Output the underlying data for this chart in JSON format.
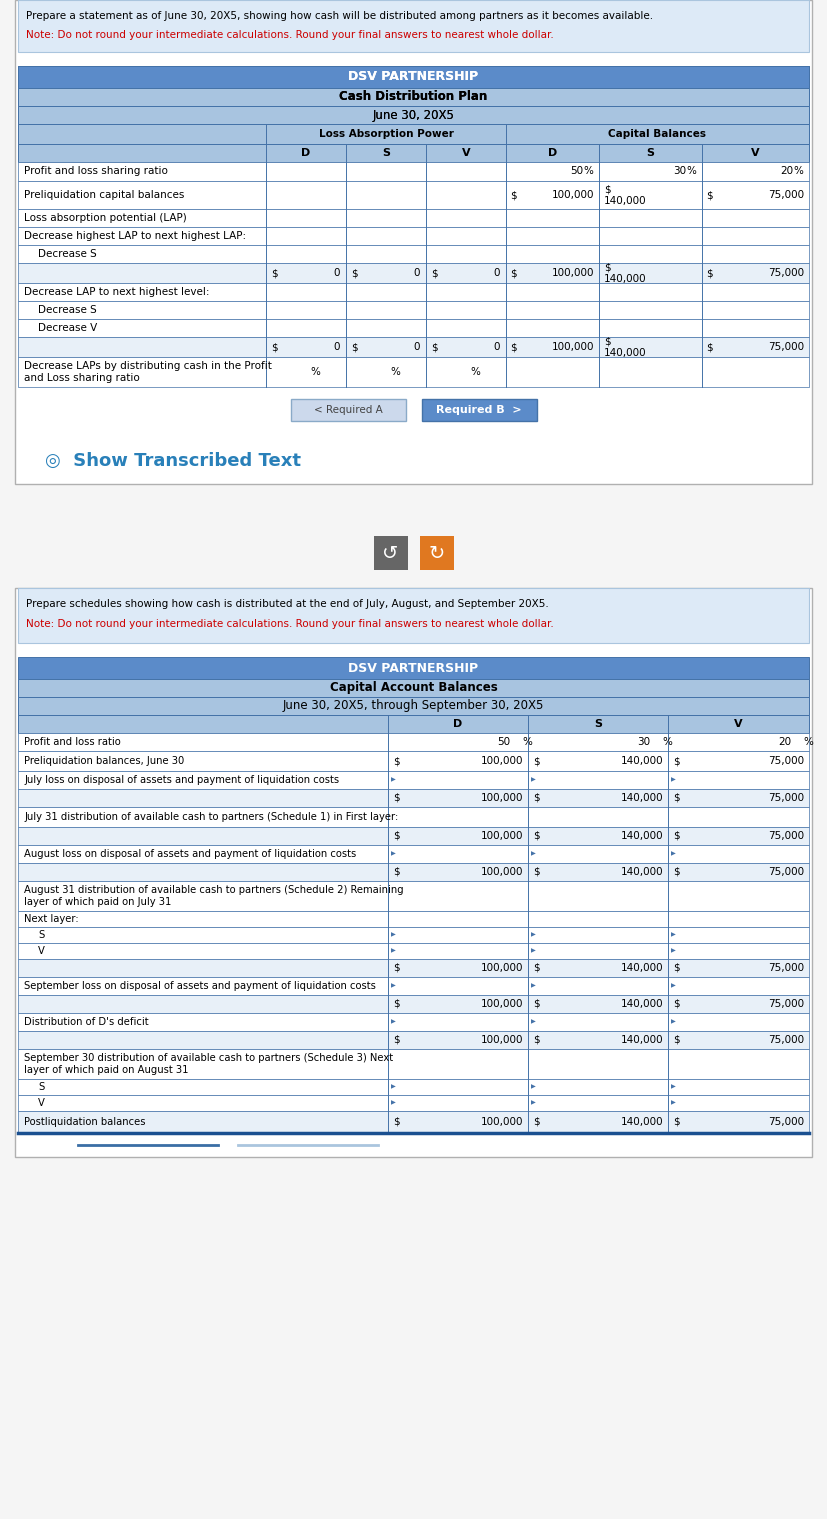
{
  "page_bg": "#f5f5f5",
  "inner_bg": "#ffffff",
  "note_bg": "#ddeaf7",
  "table_header_bg": "#5b8bc9",
  "table_subheader_bg": "#a8c4e0",
  "table_row_bg": "#ffffff",
  "table_alt_bg": "#e8f0f8",
  "border_color": "#4472a8",
  "note_red_color": "#cc0000",
  "outer_border": "#b0b0b0",
  "note1_line1": "Prepare a statement as of June 30, 20X5, showing how cash will be distributed among partners as it becomes available.",
  "note1_line2": "Note: Do not round your intermediate calculations. Round your final answers to nearest whole dollar.",
  "table1_title": "DSV PARTNERSHIP",
  "table1_subtitle": "Cash Distribution Plan",
  "table1_date": "June 30, 20X5",
  "table1_col_group1": "Loss Absorption Power",
  "table1_col_group2": "Capital Balances",
  "t1_rows": [
    {
      "label": "Profit and loss sharing ratio",
      "lap": [
        "",
        "",
        ""
      ],
      "cap": [
        "50 %",
        "30 %",
        "20 %"
      ],
      "subtotal": false,
      "indent": 0
    },
    {
      "label": "Preliquidation capital balances",
      "lap": [
        "",
        "",
        ""
      ],
      "cap": [
        "$ 100,000",
        "$\n140,000",
        "$ 75,000"
      ],
      "subtotal": false,
      "indent": 0
    },
    {
      "label": "Loss absorption potential (LAP)",
      "lap": [
        "",
        "",
        ""
      ],
      "cap": [
        "",
        "",
        ""
      ],
      "subtotal": false,
      "indent": 0
    },
    {
      "label": "Decrease highest LAP to next highest LAP:",
      "lap": [
        "",
        "",
        ""
      ],
      "cap": [
        "",
        "",
        ""
      ],
      "subtotal": false,
      "indent": 0
    },
    {
      "label": "Decrease S",
      "lap": [
        "",
        "",
        ""
      ],
      "cap": [
        "",
        "",
        ""
      ],
      "subtotal": false,
      "indent": 1
    },
    {
      "label": "",
      "lap": [
        "$ 0",
        "$ 0",
        "$ 0"
      ],
      "cap": [
        "$ 100,000",
        "$\n140,000",
        "$ 75,000"
      ],
      "subtotal": true,
      "indent": 0
    },
    {
      "label": "Decrease LAP to next highest level:",
      "lap": [
        "",
        "",
        ""
      ],
      "cap": [
        "",
        "",
        ""
      ],
      "subtotal": false,
      "indent": 0
    },
    {
      "label": "Decrease S",
      "lap": [
        "",
        "",
        ""
      ],
      "cap": [
        "",
        "",
        ""
      ],
      "subtotal": false,
      "indent": 1
    },
    {
      "label": "Decrease V",
      "lap": [
        "",
        "",
        ""
      ],
      "cap": [
        "",
        "",
        ""
      ],
      "subtotal": false,
      "indent": 1
    },
    {
      "label": "",
      "lap": [
        "$ 0",
        "$ 0",
        "$ 0"
      ],
      "cap": [
        "$ 100,000",
        "$\n140,000",
        "$ 75,000"
      ],
      "subtotal": true,
      "indent": 0
    },
    {
      "label": "Decrease LAPs by distributing cash in the Profit\nand Loss sharing ratio",
      "lap": [
        "%",
        "%",
        "%"
      ],
      "cap": [
        "",
        "",
        ""
      ],
      "subtotal": false,
      "indent": 0
    }
  ],
  "btn1_label": "< Required A",
  "btn2_label": "Required B  >",
  "show_transcribed_text": "Show Transcribed Text",
  "note2_line1": "Prepare schedules showing how cash is distributed at the end of July, August, and September 20X5.",
  "note2_line2": "Note: Do not round your intermediate calculations. Round your final answers to nearest whole dollar.",
  "table2_title": "DSV PARTNERSHIP",
  "table2_subtitle": "Capital Account Balances",
  "table2_date": "June 30, 20X5, through September 30, 20X5",
  "t2_rows": [
    {
      "label": "Profit and loss ratio",
      "d": "50 %",
      "s": "30 %",
      "v": "20 %",
      "sub": false,
      "indent": 0,
      "multiline": false
    },
    {
      "label": "Preliquidation balances, June 30",
      "d": "$ 100,000",
      "s": "$ 140,000",
      "v": "$ 75,000",
      "sub": false,
      "indent": 0,
      "multiline": false
    },
    {
      "label": "July loss on disposal of assets and payment of liquidation costs",
      "d": "",
      "s": "",
      "v": "",
      "sub": false,
      "indent": 0,
      "multiline": false
    },
    {
      "label": "",
      "d": "$ 100,000",
      "s": "$ 140,000",
      "v": "$ 75,000",
      "sub": true,
      "indent": 0,
      "multiline": false
    },
    {
      "label": "July 31 distribution of available cash to partners (Schedule 1) in First layer:",
      "d": "",
      "s": "",
      "v": "",
      "sub": false,
      "indent": 0,
      "multiline": false
    },
    {
      "label": "",
      "d": "$ 100,000",
      "s": "$ 140,000",
      "v": "$ 75,000",
      "sub": true,
      "indent": 0,
      "multiline": false
    },
    {
      "label": "August loss on disposal of assets and payment of liquidation costs",
      "d": "",
      "s": "",
      "v": "",
      "sub": false,
      "indent": 0,
      "multiline": false
    },
    {
      "label": "",
      "d": "$ 100,000",
      "s": "$ 140,000",
      "v": "$ 75,000",
      "sub": true,
      "indent": 0,
      "multiline": false
    },
    {
      "label": "August 31 distribution of available cash to partners (Schedule 2) Remaining\nlayer of which paid on July 31",
      "d": "",
      "s": "",
      "v": "",
      "sub": false,
      "indent": 0,
      "multiline": true
    },
    {
      "label": "Next layer:",
      "d": "",
      "s": "",
      "v": "",
      "sub": false,
      "indent": 0,
      "multiline": false
    },
    {
      "label": "S",
      "d": "",
      "s": "",
      "v": "",
      "sub": false,
      "indent": 1,
      "multiline": false
    },
    {
      "label": "V",
      "d": "",
      "s": "",
      "v": "",
      "sub": false,
      "indent": 1,
      "multiline": false
    },
    {
      "label": "",
      "d": "$ 100,000",
      "s": "$ 140,000",
      "v": "$ 75,000",
      "sub": true,
      "indent": 0,
      "multiline": false
    },
    {
      "label": "September loss on disposal of assets and payment of liquidation costs",
      "d": "",
      "s": "",
      "v": "",
      "sub": false,
      "indent": 0,
      "multiline": false
    },
    {
      "label": "",
      "d": "$ 100,000",
      "s": "$ 140,000",
      "v": "$ 75,000",
      "sub": true,
      "indent": 0,
      "multiline": false
    },
    {
      "label": "Distribution of D's deficit",
      "d": "",
      "s": "",
      "v": "",
      "sub": false,
      "indent": 0,
      "multiline": false
    },
    {
      "label": "",
      "d": "$ 100,000",
      "s": "$ 140,000",
      "v": "$ 75,000",
      "sub": true,
      "indent": 0,
      "multiline": false
    },
    {
      "label": "September 30 distribution of available cash to partners (Schedule 3) Next\nlayer of which paid on August 31",
      "d": "",
      "s": "",
      "v": "",
      "sub": false,
      "indent": 0,
      "multiline": true
    },
    {
      "label": "S",
      "d": "",
      "s": "",
      "v": "",
      "sub": false,
      "indent": 1,
      "multiline": false
    },
    {
      "label": "V",
      "d": "",
      "s": "",
      "v": "",
      "sub": false,
      "indent": 1,
      "multiline": false
    },
    {
      "label": "Postliquidation balances",
      "d": "$ 100,000",
      "s": "$ 140,000",
      "v": "$ 75,000",
      "sub": true,
      "indent": 0,
      "multiline": false
    }
  ]
}
